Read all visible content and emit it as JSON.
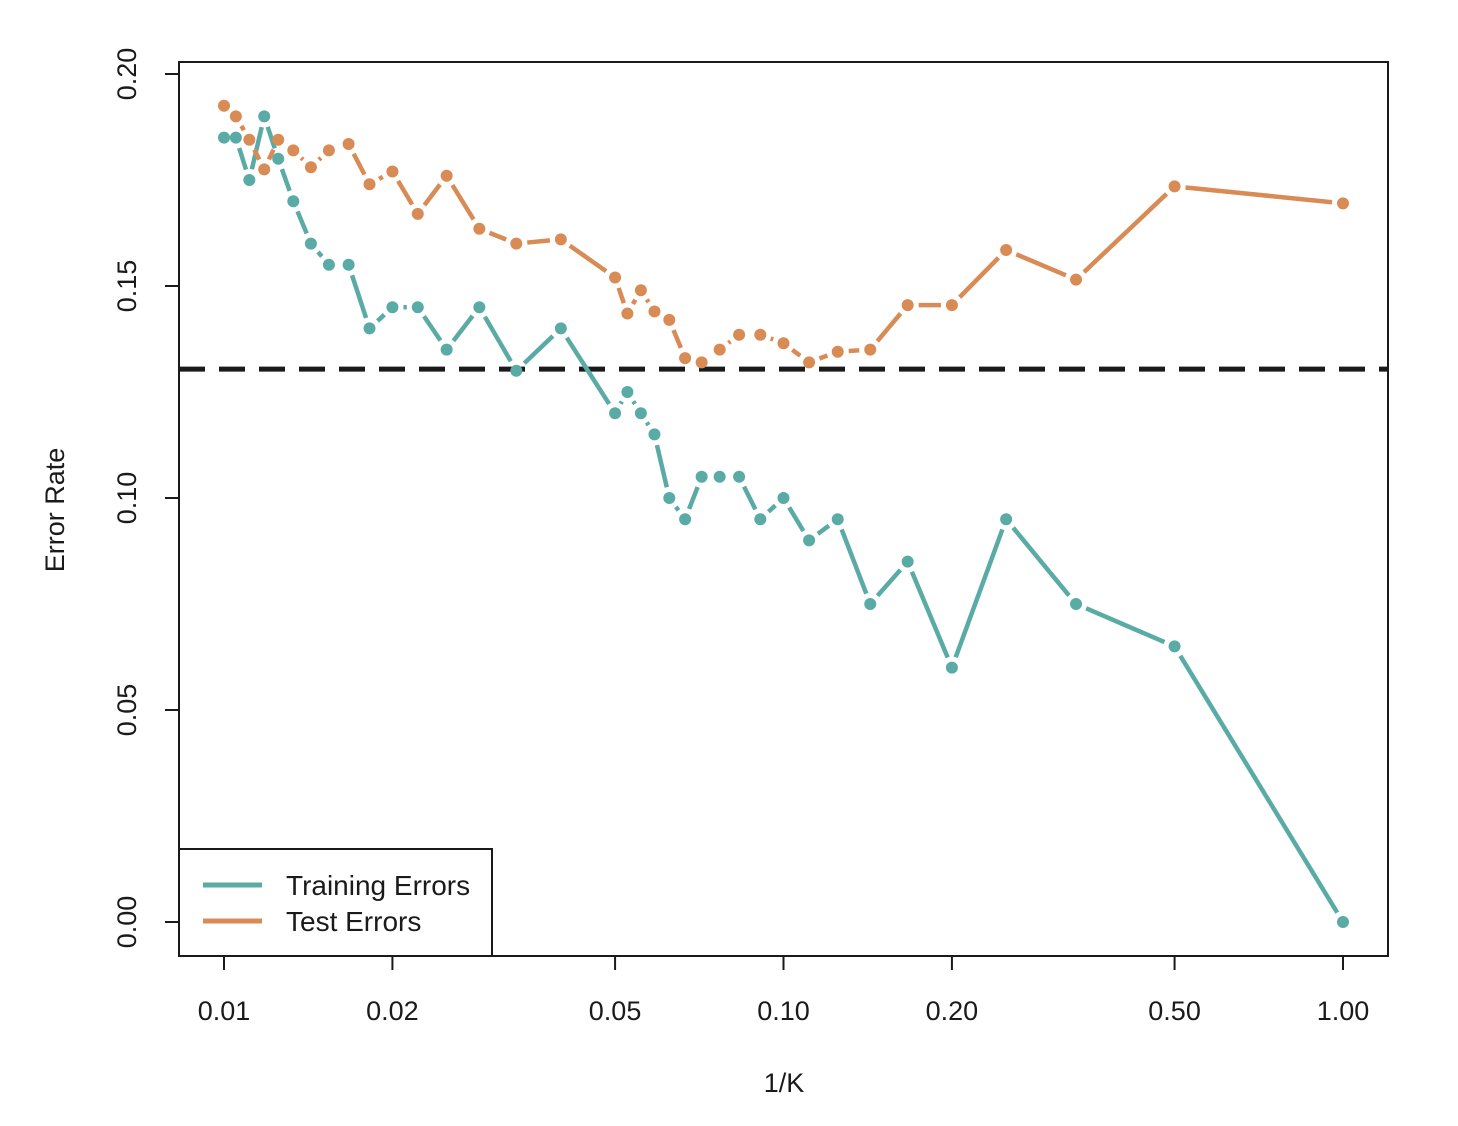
{
  "chart_data": {
    "type": "line",
    "xlabel": "1/K",
    "ylabel": "Error Rate",
    "x_scale": "log",
    "xlim": [
      0.01,
      1.0
    ],
    "ylim": [
      0.0,
      0.2
    ],
    "x_ticks": [
      0.01,
      0.02,
      0.05,
      0.1,
      0.2,
      0.5,
      1.0
    ],
    "x_tick_labels": [
      "0.01",
      "0.02",
      "0.05",
      "0.10",
      "0.20",
      "0.50",
      "1.00"
    ],
    "y_ticks": [
      0.0,
      0.05,
      0.1,
      0.15,
      0.2
    ],
    "y_tick_labels": [
      "0.00",
      "0.05",
      "0.10",
      "0.15",
      "0.20"
    ],
    "grid": false,
    "legend_position": "bottom-left",
    "reference_line": {
      "y": 0.1304,
      "style": "dashed",
      "color": "#1a1a1a"
    },
    "series": [
      {
        "name": "Training Errors",
        "color": "#5aaba6",
        "x": [
          0.01,
          0.0105,
          0.0111,
          0.0118,
          0.0125,
          0.0133,
          0.0143,
          0.0154,
          0.0167,
          0.0182,
          0.02,
          0.0222,
          0.025,
          0.0286,
          0.0333,
          0.04,
          0.05,
          0.0526,
          0.0556,
          0.0588,
          0.0625,
          0.0667,
          0.0714,
          0.0769,
          0.0833,
          0.0909,
          0.1,
          0.1111,
          0.125,
          0.1429,
          0.1667,
          0.2,
          0.25,
          0.3333,
          0.5,
          1.0
        ],
        "y": [
          0.185,
          0.185,
          0.175,
          0.19,
          0.18,
          0.17,
          0.16,
          0.155,
          0.155,
          0.14,
          0.145,
          0.145,
          0.135,
          0.145,
          0.13,
          0.14,
          0.12,
          0.125,
          0.12,
          0.115,
          0.1,
          0.095,
          0.105,
          0.105,
          0.105,
          0.095,
          0.1,
          0.09,
          0.095,
          0.075,
          0.085,
          0.06,
          0.095,
          0.075,
          0.065,
          0.0
        ]
      },
      {
        "name": "Test Errors",
        "color": "#d88b55",
        "x": [
          0.01,
          0.0105,
          0.0111,
          0.0118,
          0.0125,
          0.0133,
          0.0143,
          0.0154,
          0.0167,
          0.0182,
          0.02,
          0.0222,
          0.025,
          0.0286,
          0.0333,
          0.04,
          0.05,
          0.0526,
          0.0556,
          0.0588,
          0.0625,
          0.0667,
          0.0714,
          0.0769,
          0.0833,
          0.0909,
          0.1,
          0.1111,
          0.125,
          0.1429,
          0.1667,
          0.2,
          0.25,
          0.3333,
          0.5,
          1.0
        ],
        "y": [
          0.1925,
          0.19,
          0.1845,
          0.1775,
          0.1845,
          0.182,
          0.178,
          0.182,
          0.1835,
          0.174,
          0.177,
          0.167,
          0.176,
          0.1635,
          0.16,
          0.161,
          0.152,
          0.1435,
          0.149,
          0.144,
          0.142,
          0.133,
          0.132,
          0.135,
          0.1385,
          0.1385,
          0.1365,
          0.132,
          0.1345,
          0.135,
          0.1455,
          0.1455,
          0.1585,
          0.1515,
          0.1735,
          0.1695
        ]
      }
    ]
  }
}
